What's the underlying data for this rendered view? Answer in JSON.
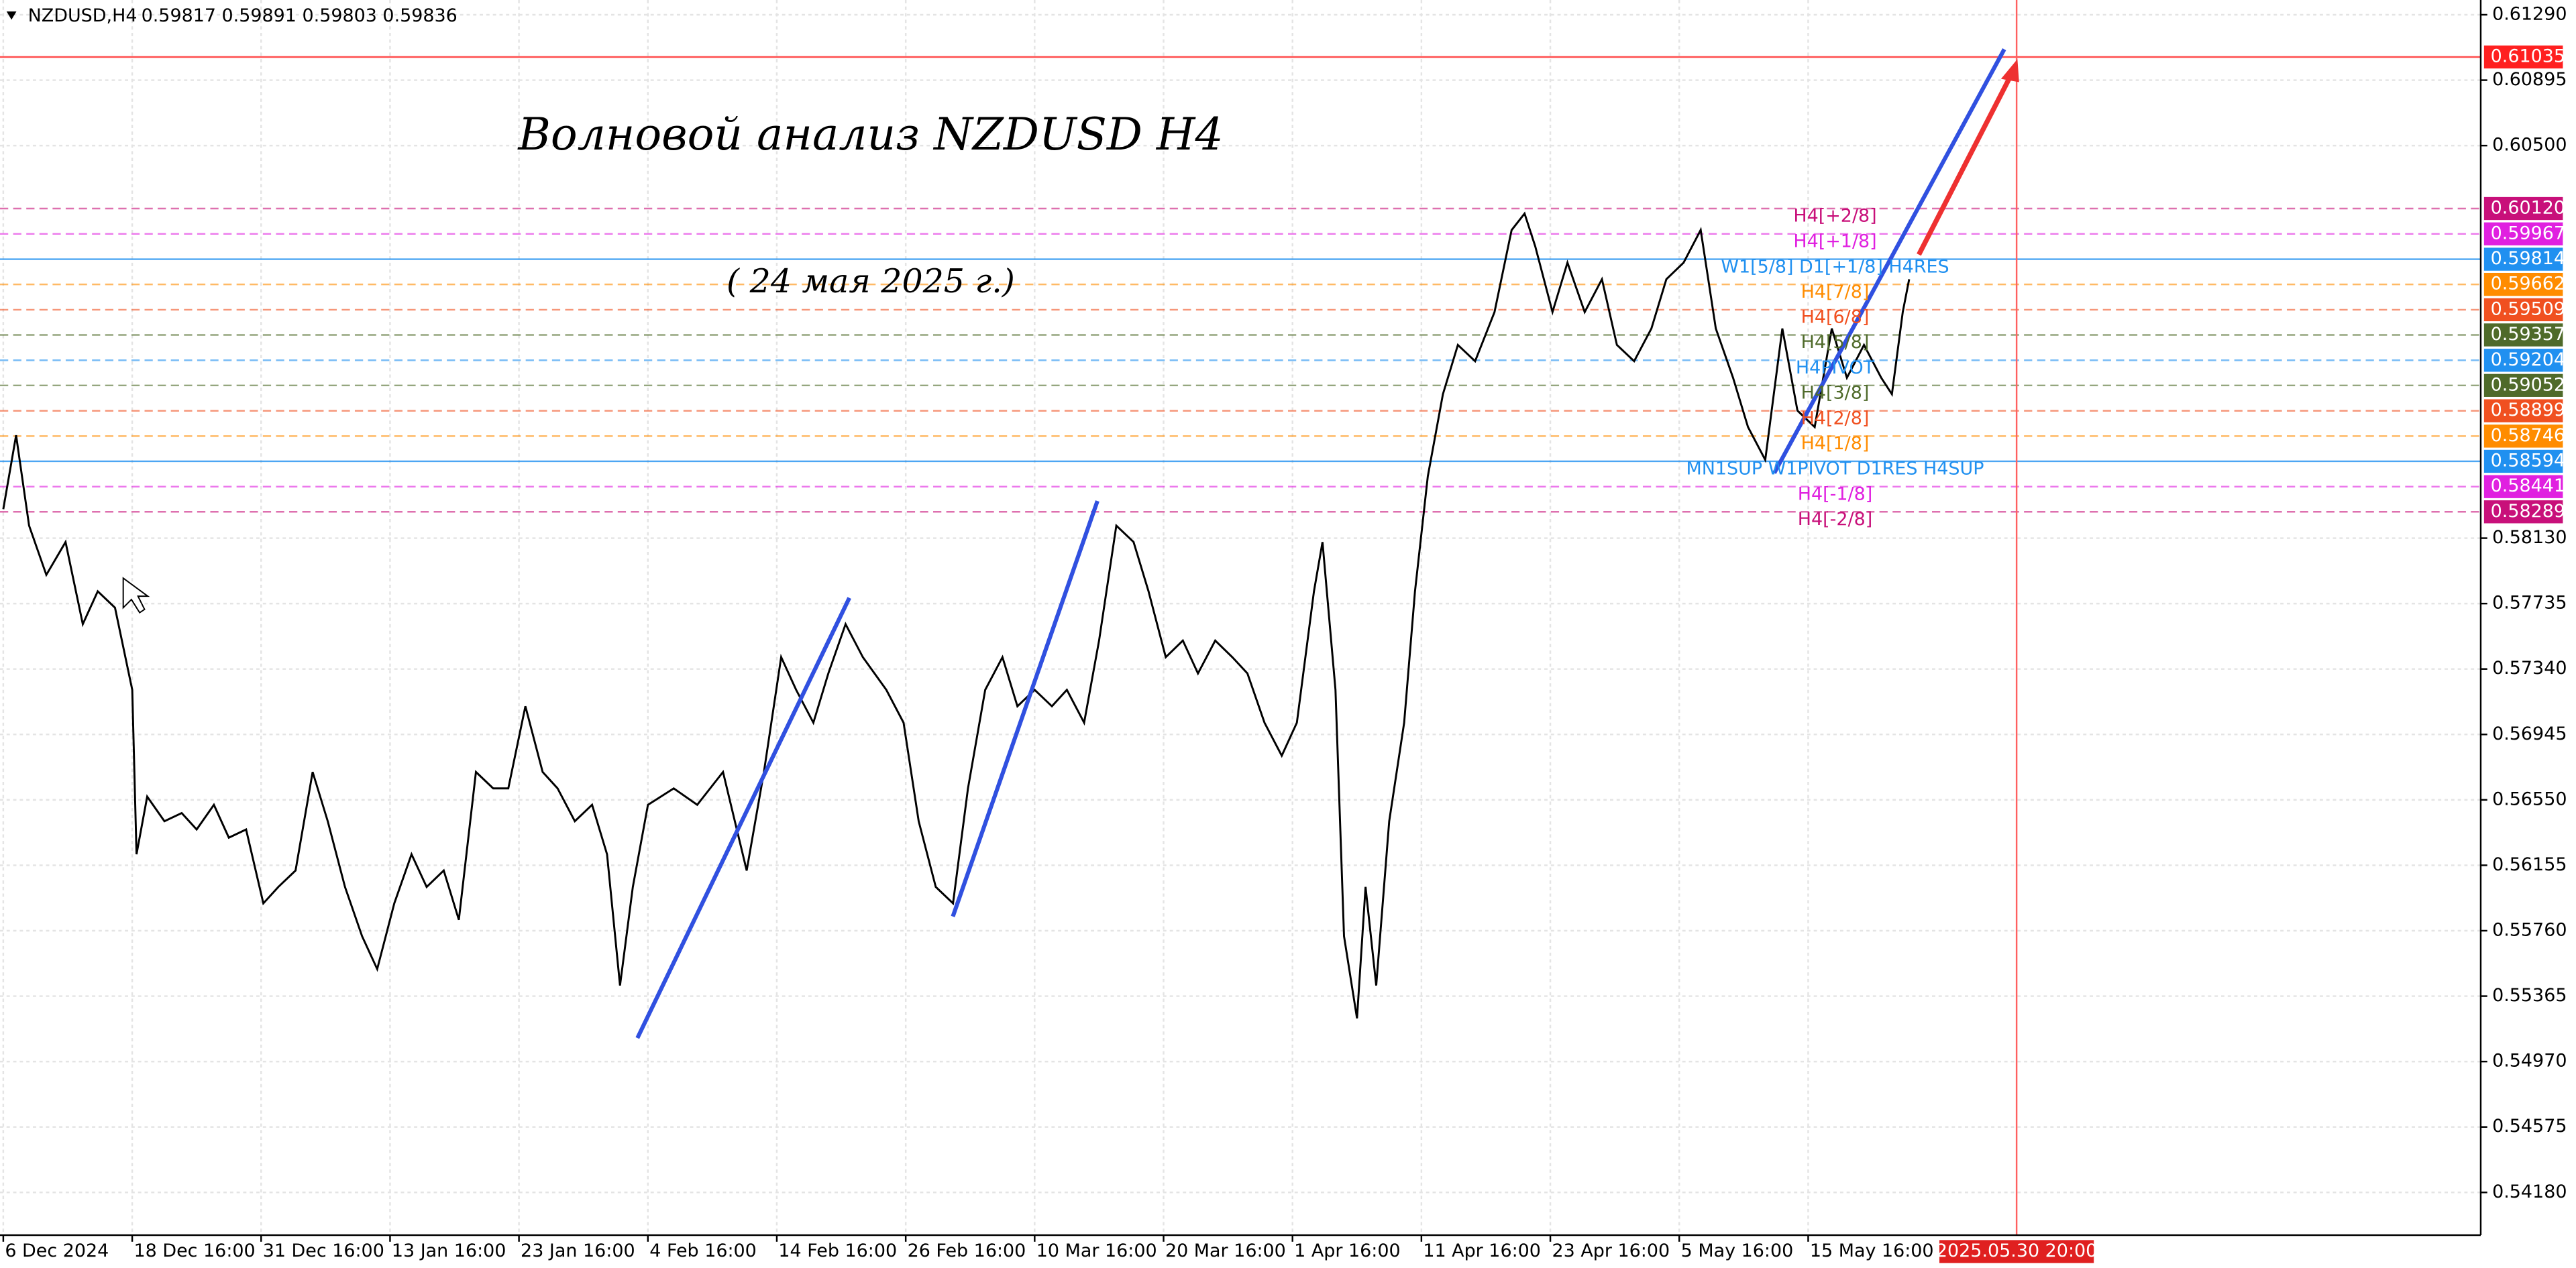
{
  "chart_data": {
    "type": "line",
    "symbol": "NZDUSD,H4",
    "quote": "0.59817 0.59891 0.59803 0.59836",
    "title": "Волновой анализ NZDUSD H4",
    "subtitle": "( 24 мая 2025 г.)",
    "grid": true,
    "xlim": [
      0,
      1153
    ],
    "ylim": [
      0.53922,
      0.61379
    ],
    "yticks": [
      {
        "value": 0.6129,
        "label": "0.61290"
      },
      {
        "value": 0.60895,
        "label": "0.60895"
      },
      {
        "value": 0.605,
        "label": "0.60500"
      },
      {
        "value": 0.5813,
        "label": "0.58130"
      },
      {
        "value": 0.57735,
        "label": "0.57735"
      },
      {
        "value": 0.5734,
        "label": "0.57340"
      },
      {
        "value": 0.56945,
        "label": "0.56945"
      },
      {
        "value": 0.5655,
        "label": "0.56550"
      },
      {
        "value": 0.56155,
        "label": "0.56155"
      },
      {
        "value": 0.5576,
        "label": "0.55760"
      },
      {
        "value": 0.55365,
        "label": "0.55365"
      },
      {
        "value": 0.5497,
        "label": "0.54970"
      },
      {
        "value": 0.54575,
        "label": "0.54575"
      },
      {
        "value": 0.5418,
        "label": "0.54180"
      }
    ],
    "xticks": [
      {
        "value": 0,
        "label": "6 Dec 2024"
      },
      {
        "value": 60,
        "label": "18 Dec 16:00"
      },
      {
        "value": 120,
        "label": "31 Dec 16:00"
      },
      {
        "value": 180,
        "label": "13 Jan 16:00"
      },
      {
        "value": 240,
        "label": "23 Jan 16:00"
      },
      {
        "value": 300,
        "label": "4 Feb 16:00"
      },
      {
        "value": 360,
        "label": "14 Feb 16:00"
      },
      {
        "value": 420,
        "label": "26 Feb 16:00"
      },
      {
        "value": 480,
        "label": "10 Mar 16:00"
      },
      {
        "value": 540,
        "label": "20 Mar 16:00"
      },
      {
        "value": 600,
        "label": "1 Apr 16:00"
      },
      {
        "value": 660,
        "label": "11 Apr 16:00"
      },
      {
        "value": 720,
        "label": "23 Apr 16:00"
      },
      {
        "value": 780,
        "label": "5 May 16:00"
      },
      {
        "value": 840,
        "label": "15 May 16:00"
      }
    ],
    "cursor_x": {
      "value": 937,
      "label": "2025.05.30 20:00"
    },
    "series": [
      {
        "color": "#000000",
        "x": [
          0,
          6,
          12,
          20,
          29,
          37,
          44,
          52,
          60,
          62,
          67,
          75,
          83,
          90,
          98,
          105,
          113,
          121,
          128,
          136,
          144,
          151,
          159,
          167,
          174,
          182,
          190,
          197,
          205,
          212,
          220,
          228,
          235,
          243,
          251,
          258,
          266,
          274,
          281,
          287,
          293,
          300,
          312,
          323,
          335,
          346,
          354,
          362,
          369,
          377,
          384,
          392,
          400,
          411,
          419,
          426,
          434,
          442,
          449,
          457,
          465,
          472,
          480,
          488,
          495,
          503,
          510,
          518,
          526,
          533,
          541,
          549,
          556,
          564,
          572,
          579,
          587,
          595,
          602,
          610,
          614,
          620,
          624,
          630,
          634,
          639,
          645,
          652,
          657,
          663,
          670,
          677,
          685,
          694,
          702,
          708,
          713,
          721,
          728,
          736,
          744,
          751,
          759,
          767,
          774,
          782,
          790,
          797,
          805,
          812,
          820,
          828,
          835,
          843,
          851,
          858,
          866,
          874,
          879,
          884,
          887
        ],
        "values": [
          0.58305,
          0.58751,
          0.58206,
          0.57908,
          0.58107,
          0.57611,
          0.57809,
          0.5771,
          0.57214,
          0.56222,
          0.5657,
          0.56421,
          0.5647,
          0.56371,
          0.5652,
          0.56322,
          0.56371,
          0.55925,
          0.56024,
          0.56123,
          0.56718,
          0.56421,
          0.56024,
          0.55727,
          0.55528,
          0.55925,
          0.56222,
          0.56024,
          0.56123,
          0.55826,
          0.56718,
          0.56619,
          0.56619,
          0.57115,
          0.56718,
          0.56619,
          0.56421,
          0.5652,
          0.56222,
          0.55429,
          0.56024,
          0.5652,
          0.56619,
          0.5652,
          0.56718,
          0.56123,
          0.56718,
          0.57412,
          0.57214,
          0.57016,
          0.57313,
          0.57611,
          0.57412,
          0.57214,
          0.57016,
          0.56421,
          0.56024,
          0.55925,
          0.56619,
          0.57214,
          0.57412,
          0.57115,
          0.57214,
          0.57115,
          0.57214,
          0.57016,
          0.57512,
          0.58206,
          0.58107,
          0.57809,
          0.57412,
          0.57512,
          0.57313,
          0.57512,
          0.57412,
          0.57313,
          0.57016,
          0.56817,
          0.57016,
          0.57809,
          0.58107,
          0.57214,
          0.55727,
          0.55231,
          0.56024,
          0.55429,
          0.56421,
          0.57016,
          0.57809,
          0.58503,
          0.58999,
          0.59297,
          0.59198,
          0.59495,
          0.5999,
          0.6009,
          0.59892,
          0.59495,
          0.59793,
          0.59495,
          0.59693,
          0.59297,
          0.59198,
          0.59396,
          0.59693,
          0.59793,
          0.59991,
          0.59396,
          0.59098,
          0.58801,
          0.58602,
          0.59396,
          0.589,
          0.58801,
          0.59396,
          0.59098,
          0.59297,
          0.59098,
          0.58999,
          0.59495,
          0.59693
        ]
      }
    ],
    "levels": [
      {
        "name": null,
        "price": {
          "value": 0.61035,
          "label": "0.61035"
        },
        "color": "#ff2020"
      },
      {
        "name": "H4[+2/8]",
        "price": {
          "value": 0.6012,
          "label": "0.60120"
        },
        "color": "#c8107a"
      },
      {
        "name": "H4[+1/8]",
        "price": {
          "value": 0.59967,
          "label": "0.59967"
        },
        "color": "#e020e0"
      },
      {
        "name": "W1[5/8] D1[+1/8] H4RES",
        "price": {
          "value": 0.59814,
          "label": "0.59814"
        },
        "color": "#2090f0"
      },
      {
        "name": "H4[7/8]",
        "price": {
          "value": 0.59662,
          "label": "0.59662"
        },
        "color": "#ff8c00"
      },
      {
        "name": "H4[6/8]",
        "price": {
          "value": 0.59509,
          "label": "0.59509"
        },
        "color": "#f05020"
      },
      {
        "name": "H4[5/8]",
        "price": {
          "value": 0.59357,
          "label": "0.59357"
        },
        "color": "#4f6a2a"
      },
      {
        "name": "H4PIVOT",
        "price": {
          "value": 0.59204,
          "label": "0.59204"
        },
        "color": "#2090f0"
      },
      {
        "name": "H4[3/8]",
        "price": {
          "value": 0.59052,
          "label": "0.59052"
        },
        "color": "#4f6a2a"
      },
      {
        "name": "H4[2/8]",
        "price": {
          "value": 0.58899,
          "label": "0.58899"
        },
        "color": "#f05020"
      },
      {
        "name": "H4[1/8]",
        "price": {
          "value": 0.58746,
          "label": "0.58746"
        },
        "color": "#ff8c00"
      },
      {
        "name": "MN1SUP W1PIVOT D1RES H4SUP",
        "price": {
          "value": 0.58594,
          "label": "0.58594"
        },
        "color": "#2090f0"
      },
      {
        "name": "H4[-1/8]",
        "price": {
          "value": 0.58441,
          "label": "0.58441"
        },
        "color": "#e020e0"
      },
      {
        "name": "H4[-2/8]",
        "price": {
          "value": 0.58289,
          "label": "0.58289"
        },
        "color": "#c8107a"
      }
    ]
  }
}
